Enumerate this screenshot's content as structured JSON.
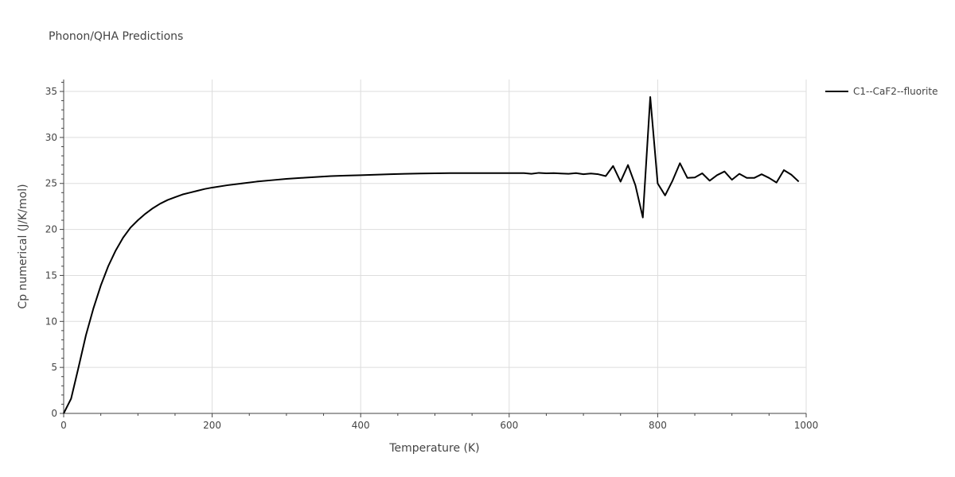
{
  "chart_data": {
    "type": "line",
    "title": "Phonon/QHA Predictions",
    "xlabel": "Temperature (K)",
    "ylabel": "Cp numerical (J/K/mol)",
    "xlim": [
      0,
      1000
    ],
    "ylim": [
      0,
      36.3
    ],
    "x_ticks": [
      0,
      200,
      400,
      600,
      800,
      1000
    ],
    "y_ticks": [
      0,
      5,
      10,
      15,
      20,
      25,
      30,
      35
    ],
    "grid": true,
    "legend_position": "top-right",
    "series": [
      {
        "name": "C1--CaF2--fluorite",
        "color": "#000000",
        "x": [
          0,
          10,
          20,
          30,
          40,
          50,
          60,
          70,
          80,
          90,
          100,
          110,
          120,
          130,
          140,
          150,
          160,
          170,
          180,
          190,
          200,
          220,
          240,
          260,
          280,
          300,
          320,
          340,
          360,
          380,
          400,
          420,
          440,
          460,
          480,
          500,
          520,
          540,
          560,
          580,
          600,
          620,
          630,
          640,
          650,
          660,
          670,
          680,
          690,
          700,
          710,
          720,
          730,
          740,
          750,
          760,
          770,
          780,
          790,
          800,
          810,
          820,
          830,
          840,
          850,
          860,
          870,
          880,
          890,
          900,
          910,
          920,
          930,
          940,
          950,
          960,
          970,
          980,
          990
        ],
        "y": [
          0,
          1.6,
          5.0,
          8.5,
          11.4,
          13.9,
          16.0,
          17.7,
          19.1,
          20.2,
          21.0,
          21.7,
          22.3,
          22.8,
          23.2,
          23.5,
          23.8,
          24.0,
          24.2,
          24.4,
          24.55,
          24.8,
          25.0,
          25.2,
          25.35,
          25.5,
          25.6,
          25.7,
          25.8,
          25.85,
          25.9,
          25.95,
          26.0,
          26.05,
          26.08,
          26.1,
          26.12,
          26.12,
          26.12,
          26.12,
          26.12,
          26.12,
          26.05,
          26.15,
          26.1,
          26.12,
          26.08,
          26.05,
          26.12,
          26.0,
          26.08,
          26.0,
          25.8,
          26.9,
          25.2,
          27.0,
          24.8,
          21.3,
          34.4,
          25.0,
          23.7,
          25.3,
          27.2,
          25.6,
          25.65,
          26.1,
          25.3,
          25.9,
          26.3,
          25.4,
          26.05,
          25.6,
          25.6,
          26.0,
          25.6,
          25.1,
          26.45,
          25.95,
          25.2
        ]
      }
    ]
  }
}
